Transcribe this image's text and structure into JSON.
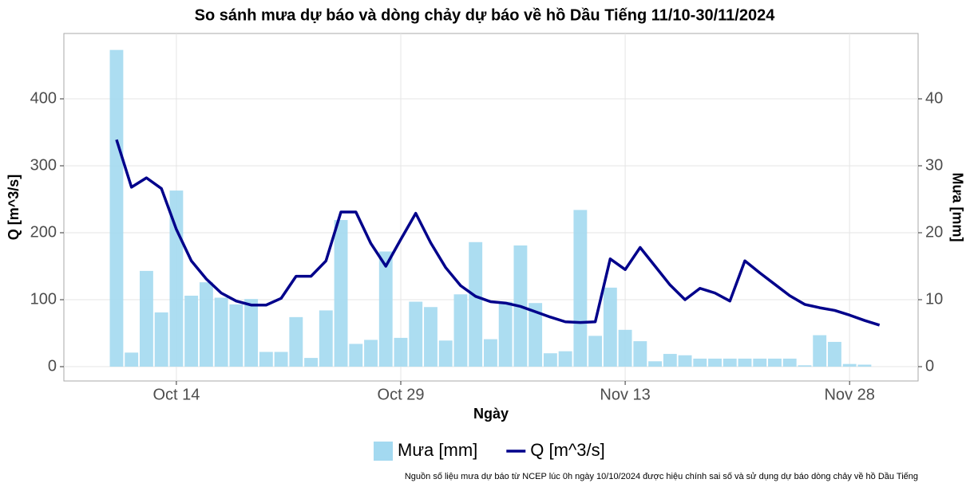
{
  "chart_data": {
    "type": "bar_line",
    "title": "So sánh mưa dự báo và dòng chảy dự báo về hồ Dầu Tiếng 11/10-30/11/2024",
    "x_label": "Ngày",
    "y_label": "Q [m^3/s]",
    "y2_label": "Mưa [mm]",
    "footnote": "Nguồn số liệu mưa dự báo từ NCEP lúc 0h ngày 10/10/2024 được hiệu chính sai số và sử dụng dự báo dòng chảy về hồ Dầu Tiếng",
    "x": [
      "Oct 10",
      "Oct 11",
      "Oct 12",
      "Oct 13",
      "Oct 14",
      "Oct 15",
      "Oct 16",
      "Oct 17",
      "Oct 18",
      "Oct 19",
      "Oct 20",
      "Oct 21",
      "Oct 22",
      "Oct 23",
      "Oct 24",
      "Oct 25",
      "Oct 26",
      "Oct 27",
      "Oct 28",
      "Oct 29",
      "Oct 30",
      "Oct 31",
      "Nov 1",
      "Nov 2",
      "Nov 3",
      "Nov 4",
      "Nov 5",
      "Nov 6",
      "Nov 7",
      "Nov 8",
      "Nov 9",
      "Nov 10",
      "Nov 11",
      "Nov 12",
      "Nov 13",
      "Nov 14",
      "Nov 15",
      "Nov 16",
      "Nov 17",
      "Nov 18",
      "Nov 19",
      "Nov 20",
      "Nov 21",
      "Nov 22",
      "Nov 23",
      "Nov 24",
      "Nov 25",
      "Nov 26",
      "Nov 27",
      "Nov 28",
      "Nov 29",
      "Nov 30"
    ],
    "xticks": [
      "Oct 14",
      "Oct 29",
      "Nov 13",
      "Nov 28"
    ],
    "series": [
      {
        "name": "Mưa [mm]",
        "kind": "bar",
        "axis": "y2",
        "color": "#a3d9f0",
        "values": [
          47.3,
          2.1,
          14.3,
          8.1,
          26.3,
          10.6,
          12.6,
          10.3,
          9.3,
          10.1,
          2.2,
          2.2,
          7.4,
          1.3,
          8.4,
          21.9,
          3.4,
          4.0,
          17.2,
          4.3,
          9.7,
          8.9,
          3.9,
          10.8,
          18.6,
          4.1,
          9.7,
          18.1,
          9.5,
          2.0,
          2.3,
          23.4,
          4.6,
          11.8,
          5.5,
          3.8,
          0.8,
          1.9,
          1.7,
          1.2,
          1.2,
          1.2,
          1.2,
          1.2,
          1.2,
          1.2,
          0.2,
          4.7,
          3.7,
          0.4,
          0.3,
          null
        ]
      },
      {
        "name": "Q [m^3/s]",
        "kind": "line",
        "axis": "y",
        "color": "#00008b",
        "values": [
          339,
          268,
          282,
          266,
          205,
          158,
          131,
          110,
          98,
          92,
          92,
          102,
          135,
          135,
          158,
          231,
          231,
          184,
          150,
          190,
          229,
          185,
          148,
          121,
          105,
          97,
          95,
          90,
          82,
          74,
          67,
          66,
          67,
          161,
          145,
          178,
          150,
          122,
          100,
          117,
          110,
          98,
          158,
          140,
          123,
          106,
          93,
          88,
          84,
          77,
          69,
          62
        ]
      }
    ],
    "ylim": [
      -21.4,
      497.6
    ],
    "yticks": [
      0,
      100,
      200,
      300,
      400
    ],
    "y2lim": [
      -2.14,
      49.76
    ],
    "y2ticks": [
      0,
      10,
      20,
      30,
      40
    ],
    "grid": true,
    "legend": "bottom"
  }
}
